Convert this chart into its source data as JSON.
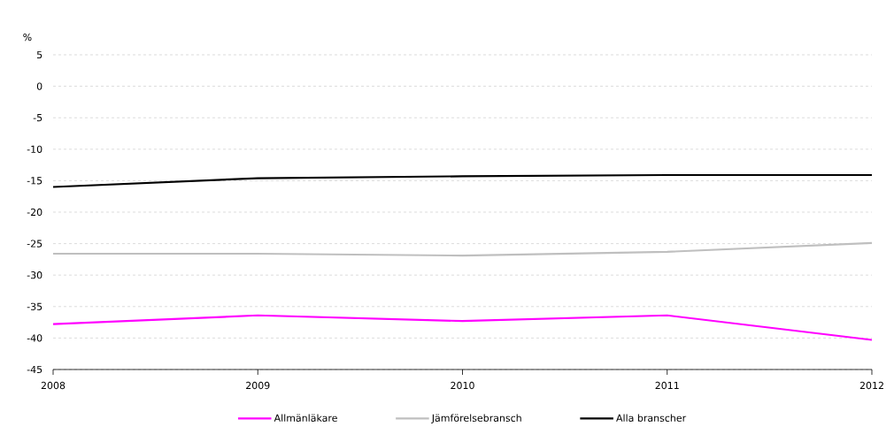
{
  "chart_data": {
    "type": "line",
    "ylabel": "%",
    "x": [
      2008,
      2009,
      2010,
      2011,
      2012
    ],
    "xlim": [
      2008,
      2012
    ],
    "xticks": [
      2008,
      2009,
      2010,
      2011,
      2012
    ],
    "ylim": [
      -45,
      5
    ],
    "yticks": [
      -45,
      -40,
      -35,
      -30,
      -25,
      -20,
      -15,
      -10,
      -5,
      0,
      5
    ],
    "grid": "y",
    "legend": "bottom",
    "marker": "none",
    "line_style": "solid",
    "series": [
      {
        "name": "Allmänläkare",
        "color": "#ff00ff",
        "values": [
          -37.8,
          -36.4,
          -37.3,
          -36.4,
          -40.3
        ]
      },
      {
        "name": "Jämförelsebransch",
        "color": "#bfbfbf",
        "values": [
          -26.6,
          -26.6,
          -26.9,
          -26.3,
          -24.9
        ]
      },
      {
        "name": "Alla branscher",
        "color": "#000000",
        "values": [
          -16.0,
          -14.6,
          -14.3,
          -14.1,
          -14.1
        ]
      }
    ]
  }
}
